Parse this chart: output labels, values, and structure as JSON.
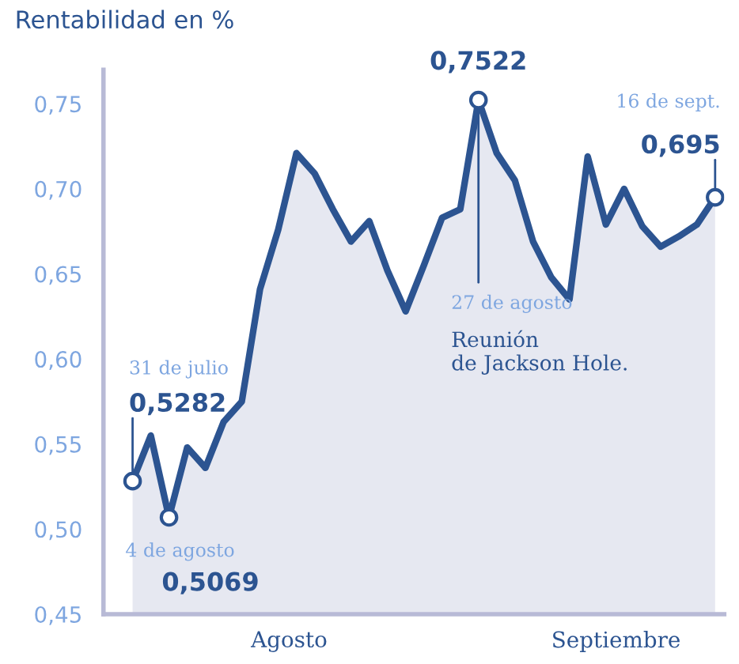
{
  "chart_data": {
    "type": "area",
    "title": "Rentabilidad en %",
    "categories": [
      null,
      null,
      null,
      null,
      null,
      null,
      null,
      null,
      null,
      null,
      null,
      null,
      null,
      null,
      null,
      null,
      null,
      null,
      null,
      null,
      null,
      null,
      null,
      null,
      null,
      null,
      null,
      null,
      null,
      null,
      null,
      null,
      null
    ],
    "series": [
      {
        "color": "#2c5491",
        "values": [
          0.5282,
          0.555,
          0.5069,
          0.548,
          0.536,
          0.563,
          0.575,
          0.641,
          0.676,
          0.721,
          0.709,
          0.688,
          0.669,
          0.681,
          0.652,
          0.628,
          0.655,
          0.683,
          0.688,
          0.7522,
          0.721,
          0.705,
          0.669,
          0.648,
          0.635,
          0.719,
          0.679,
          0.7,
          0.678,
          0.666,
          0.672,
          0.679,
          0.695
        ],
        "value_labels": [
          "0,5282",
          null,
          "0,5069",
          null,
          null,
          null,
          null,
          null,
          null,
          null,
          null,
          null,
          null,
          null,
          null,
          null,
          null,
          null,
          null,
          "0,7522",
          null,
          null,
          null,
          null,
          null,
          null,
          null,
          null,
          null,
          null,
          null,
          null,
          "0,695"
        ]
      }
    ],
    "ylim": [
      0.45,
      0.77
    ],
    "yticks": [
      {
        "value": 0.45,
        "label": "0,45"
      },
      {
        "value": 0.5,
        "label": "0,50"
      },
      {
        "value": 0.55,
        "label": "0,55"
      },
      {
        "value": 0.6,
        "label": "0,60"
      },
      {
        "value": 0.65,
        "label": "0,65"
      },
      {
        "value": 0.7,
        "label": "0,70"
      },
      {
        "value": 0.75,
        "label": "0,75"
      }
    ],
    "grid": false,
    "annotations": [
      "31 de julio",
      "4 de agosto",
      "27 de agosto",
      "Reunión\nde Jackson Hole.",
      "16 de sept.",
      "Agosto",
      "Septiembre"
    ]
  }
}
